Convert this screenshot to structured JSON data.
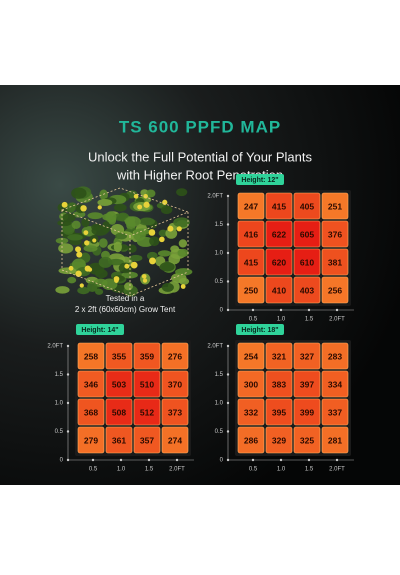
{
  "header": {
    "title": "TS 600 PPFD MAP",
    "subtitle_lines": [
      "Unlock the Full Potential of Your Plants",
      "with Higher Root Penetration"
    ]
  },
  "caption": {
    "lines": [
      "Tested in a",
      "2 x 2ft (60x60cm) Grow Tent"
    ]
  },
  "maps": [
    {
      "label": "Height: 12\"",
      "rows": [
        [
          247,
          415,
          405,
          251
        ],
        [
          416,
          622,
          605,
          376
        ],
        [
          415,
          620,
          610,
          381
        ],
        [
          250,
          410,
          403,
          256
        ]
      ],
      "y_ticks": [
        "2.0FT",
        "1.5",
        "1.0",
        "0.5",
        "0"
      ],
      "x_ticks": [
        "0.5",
        "1.0",
        "1.5",
        "2.0FT"
      ]
    },
    {
      "label": "Height: 14\"",
      "rows": [
        [
          258,
          355,
          359,
          276
        ],
        [
          346,
          503,
          510,
          370
        ],
        [
          368,
          508,
          512,
          373
        ],
        [
          279,
          361,
          357,
          274
        ]
      ],
      "y_ticks": [
        "2.0FT",
        "1.5",
        "1.0",
        "0.5",
        "0"
      ],
      "x_ticks": [
        "0.5",
        "1.0",
        "1.5",
        "2.0FT"
      ]
    },
    {
      "label": "Height: 18\"",
      "rows": [
        [
          254,
          321,
          327,
          283
        ],
        [
          300,
          383,
          397,
          334
        ],
        [
          332,
          395,
          399,
          337
        ],
        [
          286,
          329,
          325,
          281
        ]
      ],
      "y_ticks": [
        "2.0FT",
        "1.5",
        "1.0",
        "0.5",
        "0"
      ],
      "x_ticks": [
        "0.5",
        "1.0",
        "1.5",
        "2.0FT"
      ]
    }
  ]
}
